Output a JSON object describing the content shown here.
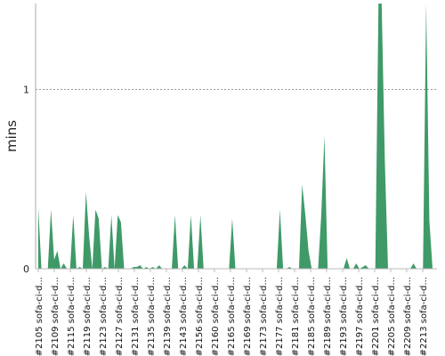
{
  "chart_data": {
    "type": "area",
    "title": "",
    "xlabel": "",
    "ylabel": "mins",
    "ylim": [
      0,
      1.48
    ],
    "yticks": [
      0,
      1
    ],
    "grid": true,
    "color": "#3f9a68",
    "x_labels": [
      "#2105 sofa-ci-d...",
      "#2109 sofa-ci-d...",
      "#2115 sofa-ci-d...",
      "#2119 sofa-ci-d...",
      "#2123 sofa-ci-d...",
      "#2127 sofa-ci-d...",
      "#2131 sofa-ci-d...",
      "#2135 sofa-ci-d...",
      "#2139 sofa-ci-d...",
      "#2143 sofa-ci-d...",
      "#2156 sofa-ci-d...",
      "#2160 sofa-ci-d...",
      "#2165 sofa-ci-d...",
      "#2169 sofa-ci-d...",
      "#2173 sofa-ci-d...",
      "#2177 sofa-ci-d...",
      "#2181 sofa-ci-d...",
      "#2185 sofa-ci-d...",
      "#2189 sofa-ci-d...",
      "#2193 sofa-ci-d...",
      "#2197 sofa-ci-d...",
      "#2201 sofa-ci-d...",
      "#2205 sofa-ci-d...",
      "#2209 sofa-ci-d...",
      "#2213 sofa-ci-d..."
    ],
    "values": [
      0.34,
      0.0,
      0.0,
      0.0,
      0.33,
      0.05,
      0.1,
      0.0,
      0.03,
      0.0,
      0.0,
      0.3,
      0.0,
      0.01,
      0.0,
      0.43,
      0.18,
      0.0,
      0.33,
      0.28,
      0.0,
      0.01,
      0.0,
      0.3,
      0.0,
      0.3,
      0.26,
      0.0,
      0.0,
      0.0,
      0.01,
      0.01,
      0.02,
      0.0,
      0.01,
      0.0,
      0.01,
      0.0,
      0.02,
      0.0,
      0.0,
      0.0,
      0.0,
      0.3,
      0.0,
      0.0,
      0.02,
      0.0,
      0.3,
      0.0,
      0.0,
      0.3,
      0.0,
      0.0,
      0.0,
      0.0,
      0.0,
      0.0,
      0.0,
      0.0,
      0.0,
      0.28,
      0.0,
      0.0,
      0.0,
      0.0,
      0.0,
      0.0,
      0.0,
      0.0,
      0.0,
      0.0,
      0.0,
      0.0,
      0.0,
      0.0,
      0.33,
      0.0,
      0.0,
      0.01,
      0.0,
      0.0,
      0.0,
      0.47,
      0.3,
      0.1,
      0.0,
      0.0,
      0.0,
      0.3,
      0.74,
      0.0,
      0.0,
      0.0,
      0.0,
      0.0,
      0.0,
      0.06,
      0.0,
      0.0,
      0.03,
      0.0,
      0.01,
      0.02,
      0.0,
      0.0,
      0.0,
      1.55,
      1.55,
      0.6,
      0.0,
      0.0,
      0.0,
      0.0,
      0.0,
      0.0,
      0.0,
      0.0,
      0.03,
      0.0,
      0.0,
      0.0,
      1.55,
      0.27,
      0.0
    ]
  }
}
